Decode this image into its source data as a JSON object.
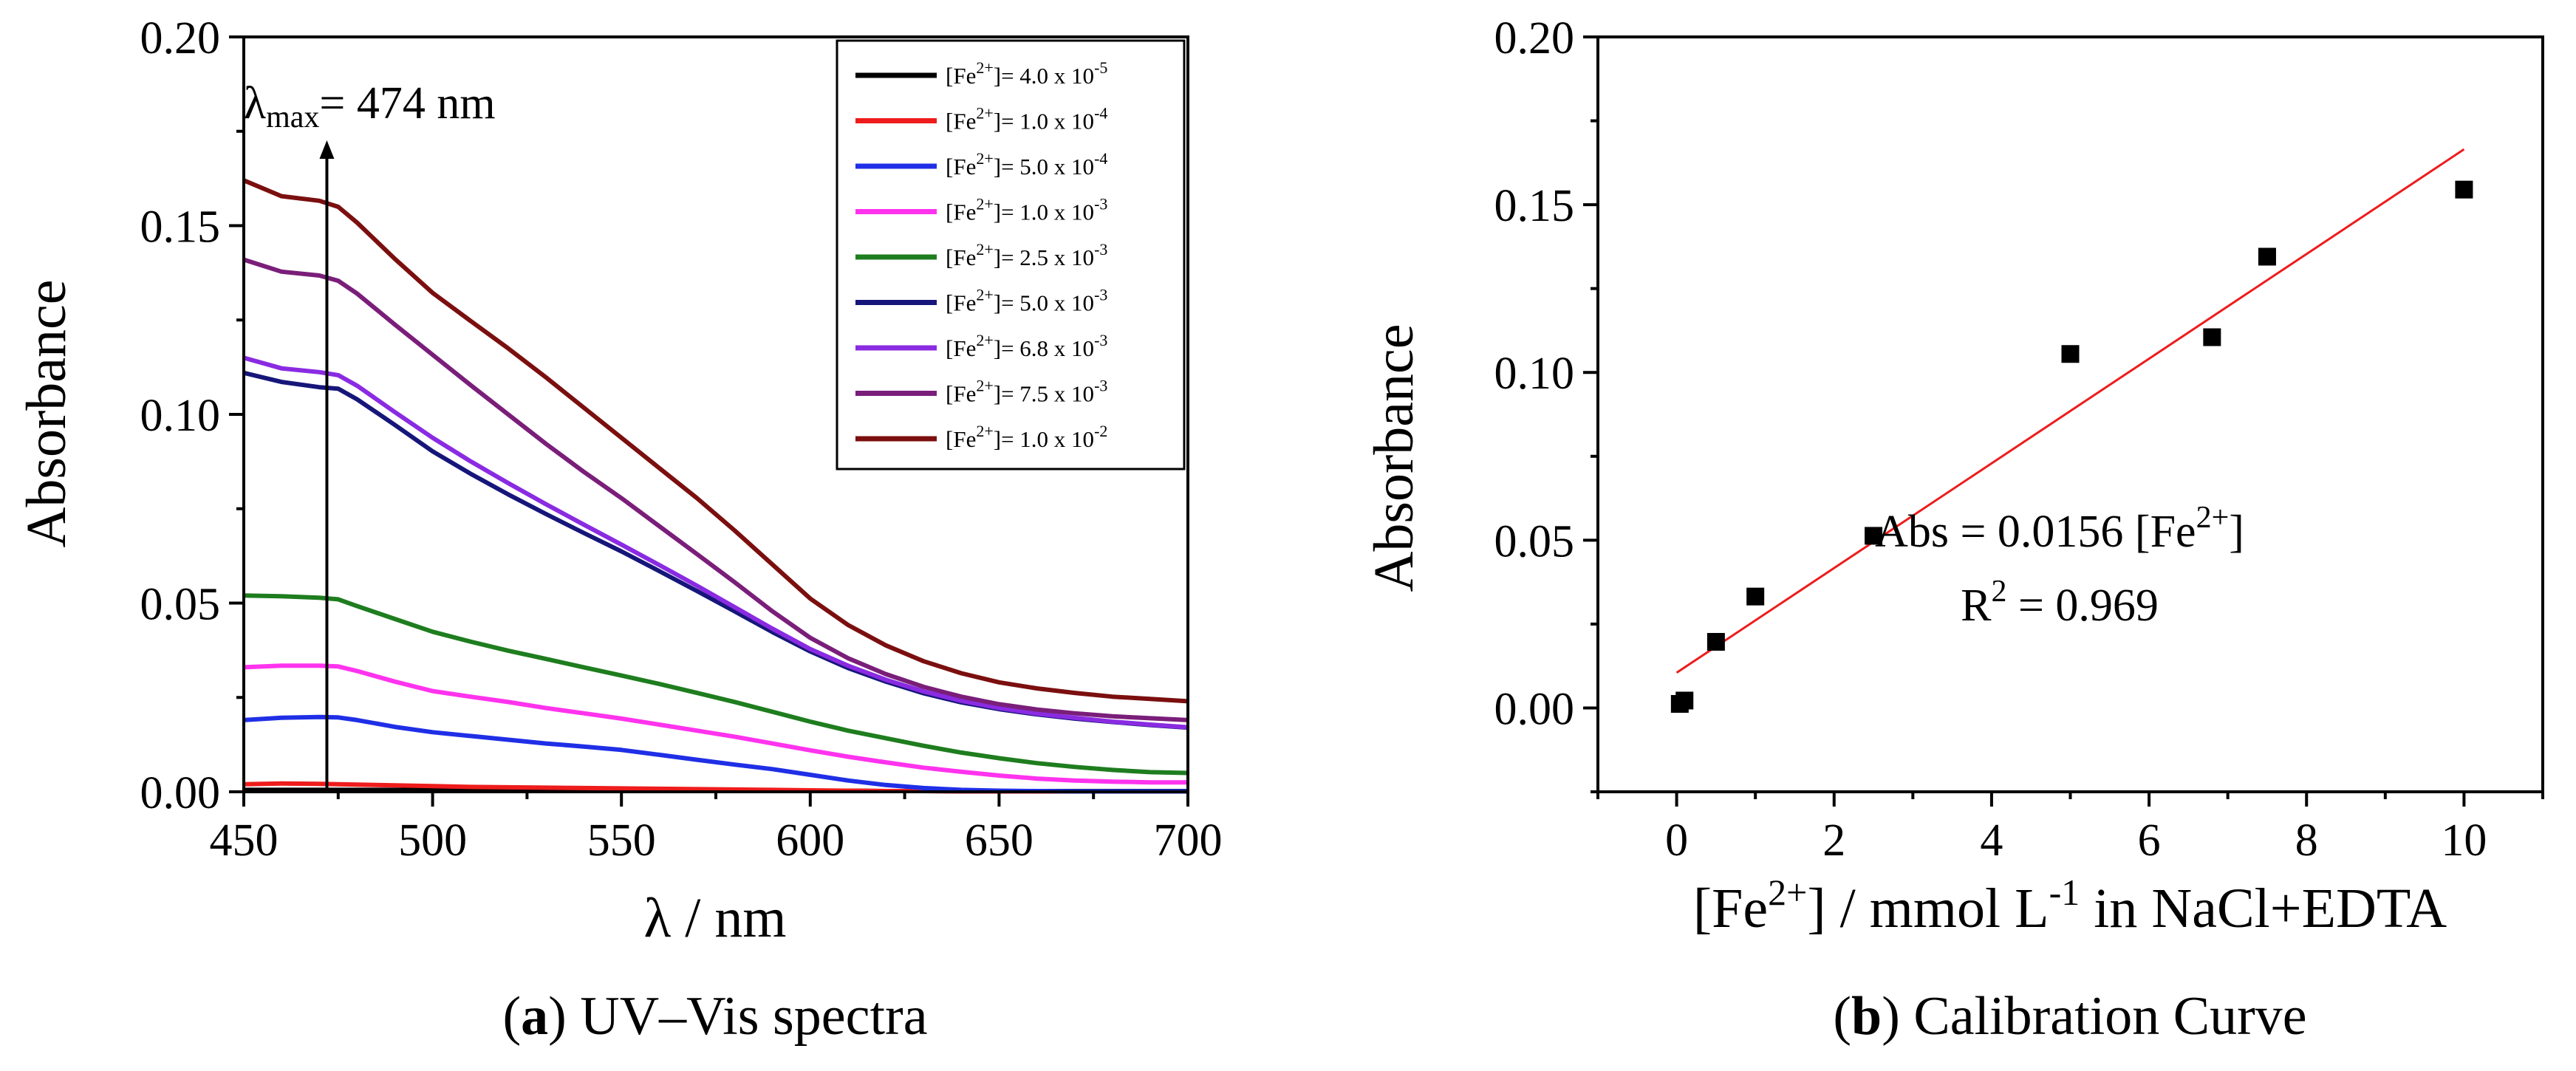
{
  "chart_data": [
    {
      "type": "line",
      "title": "",
      "xlabel": "λ / nm",
      "ylabel": "Absorbance",
      "xlim": [
        450,
        700
      ],
      "ylim": [
        0,
        0.2
      ],
      "xticks": [
        "450",
        "500",
        "550",
        "600",
        "650",
        "700"
      ],
      "yticks": [
        "0.00",
        "0.05",
        "0.10",
        "0.15",
        "0.20"
      ],
      "annotation": {
        "symbol": "λ",
        "sub": "max",
        "text": "= 474 nm",
        "x": 472
      },
      "legend_position": "top-right",
      "x": [
        450,
        460,
        470,
        475,
        480,
        490,
        500,
        510,
        520,
        530,
        540,
        550,
        560,
        570,
        580,
        590,
        600,
        610,
        620,
        630,
        640,
        650,
        660,
        670,
        680,
        690,
        700
      ],
      "series": [
        {
          "name_prefix": "[Fe",
          "name_sup1": "2+",
          "name_mid": "]= 4.0 x 10",
          "name_sup2": "-5",
          "color": "#000000",
          "values": [
            0.0005,
            0.0005,
            0.0005,
            0.0005,
            0.0005,
            0.0005,
            0.0005,
            0.0005,
            0.0004,
            0.0004,
            0.0004,
            0.0004,
            0.0004,
            0.0003,
            0.0003,
            0.0003,
            0.0003,
            0.0003,
            0.0002,
            0.0002,
            0.0002,
            0.0002,
            0.0002,
            0.0002,
            0.0002,
            0.0002,
            0.0002
          ]
        },
        {
          "name_prefix": "[Fe",
          "name_sup1": "2+",
          "name_mid": "]= 1.0 x 10",
          "name_sup2": "-4",
          "color": "#ee1c1c",
          "values": [
            0.002,
            0.0022,
            0.0021,
            0.002,
            0.0019,
            0.0017,
            0.0015,
            0.0013,
            0.0012,
            0.0011,
            0.001,
            0.0009,
            0.0008,
            0.0007,
            0.0006,
            0.0005,
            0.0004,
            0.0003,
            0.0002,
            0.0002,
            0.0001,
            0.0001,
            0.0001,
            0.0001,
            0.0001,
            0.0001,
            0.0001
          ]
        },
        {
          "name_prefix": "[Fe",
          "name_sup1": "2+",
          "name_mid": "]= 5.0 x 10",
          "name_sup2": "-4",
          "color": "#1f2fe6",
          "values": [
            0.019,
            0.0196,
            0.0198,
            0.0197,
            0.019,
            0.0172,
            0.0158,
            0.0148,
            0.0138,
            0.0128,
            0.012,
            0.0111,
            0.0098,
            0.0085,
            0.0072,
            0.006,
            0.0045,
            0.003,
            0.0018,
            0.001,
            0.0005,
            0.0003,
            0.0002,
            0.0001,
            0.0001,
            0.0001,
            0.0001
          ]
        },
        {
          "name_prefix": "[Fe",
          "name_sup1": "2+",
          "name_mid": "]= 1.0 x 10",
          "name_sup2": "-3",
          "color": "#ff33ee",
          "values": [
            0.033,
            0.0334,
            0.0334,
            0.0332,
            0.032,
            0.0292,
            0.0267,
            0.0252,
            0.0238,
            0.0222,
            0.0208,
            0.0194,
            0.0178,
            0.0162,
            0.0146,
            0.0128,
            0.011,
            0.0093,
            0.0078,
            0.0064,
            0.0053,
            0.0043,
            0.0035,
            0.003,
            0.0027,
            0.0025,
            0.0025
          ]
        },
        {
          "name_prefix": "[Fe",
          "name_sup1": "2+",
          "name_mid": "]= 2.5 x 10",
          "name_sup2": "-3",
          "color": "#1e7d1e",
          "values": [
            0.052,
            0.0518,
            0.0514,
            0.051,
            0.0492,
            0.0458,
            0.0424,
            0.0398,
            0.0374,
            0.0352,
            0.033,
            0.0308,
            0.0286,
            0.0262,
            0.0238,
            0.0212,
            0.0186,
            0.0162,
            0.0142,
            0.0122,
            0.0104,
            0.0089,
            0.0076,
            0.0066,
            0.0058,
            0.0052,
            0.005
          ]
        },
        {
          "name_prefix": "[Fe",
          "name_sup1": "2+",
          "name_mid": "]= 5.0 x 10",
          "name_sup2": "-3",
          "color": "#16167a",
          "values": [
            0.111,
            0.1086,
            0.1072,
            0.1068,
            0.104,
            0.0972,
            0.0902,
            0.0843,
            0.0788,
            0.0736,
            0.0686,
            0.0637,
            0.0585,
            0.0532,
            0.0478,
            0.0423,
            0.0372,
            0.0328,
            0.0292,
            0.0261,
            0.0237,
            0.0219,
            0.0205,
            0.0194,
            0.0185,
            0.0177,
            0.017
          ]
        },
        {
          "name_prefix": "[Fe",
          "name_sup1": "2+",
          "name_mid": "]= 6.8 x 10",
          "name_sup2": "-3",
          "color": "#8a2be2",
          "values": [
            0.115,
            0.1122,
            0.1112,
            0.1104,
            0.1076,
            0.1006,
            0.0938,
            0.0876,
            0.0818,
            0.0762,
            0.0708,
            0.0655,
            0.0601,
            0.0546,
            0.0489,
            0.0432,
            0.0378,
            0.0334,
            0.0297,
            0.0266,
            0.0241,
            0.0222,
            0.0207,
            0.0196,
            0.0186,
            0.0178,
            0.0171
          ]
        },
        {
          "name_prefix": "[Fe",
          "name_sup1": "2+",
          "name_mid": "]= 7.5 x 10",
          "name_sup2": "-3",
          "color": "#7a1e7a",
          "values": [
            0.141,
            0.1378,
            0.1368,
            0.1354,
            0.132,
            0.1238,
            0.1158,
            0.1078,
            0.1,
            0.0922,
            0.0848,
            0.0778,
            0.0704,
            0.063,
            0.0555,
            0.0478,
            0.0408,
            0.0354,
            0.0312,
            0.0278,
            0.0252,
            0.0232,
            0.0218,
            0.0208,
            0.02,
            0.0195,
            0.019
          ]
        },
        {
          "name_prefix": "[Fe",
          "name_sup1": "2+",
          "name_mid": "]= 1.0 x 10",
          "name_sup2": "-2",
          "color": "#7b0f0f",
          "values": [
            0.162,
            0.1578,
            0.1566,
            0.155,
            0.1508,
            0.1412,
            0.1322,
            0.1248,
            0.1175,
            0.1098,
            0.1018,
            0.0938,
            0.0858,
            0.0778,
            0.0692,
            0.0602,
            0.0512,
            0.0442,
            0.0388,
            0.0346,
            0.0314,
            0.029,
            0.0274,
            0.0262,
            0.0252,
            0.0246,
            0.024
          ]
        }
      ],
      "caption": {
        "open": "(",
        "bold": "a",
        "close": ")",
        "text": " UV–Vis spectra"
      }
    },
    {
      "type": "scatter",
      "title": "",
      "xlabel_prefix": "[Fe",
      "xlabel_sup": "2+",
      "xlabel_mid": "] / mmol L",
      "xlabel_sup2": "-1",
      "xlabel_suffix": " in NaCl+EDTA",
      "ylabel": "Absorbance",
      "xlim": [
        -1,
        11
      ],
      "ylim": [
        -0.025,
        0.2
      ],
      "xticks": [
        "0",
        "2",
        "4",
        "6",
        "8",
        "10"
      ],
      "yticks": [
        "0.00",
        "0.05",
        "0.10",
        "0.15",
        "0.20"
      ],
      "x": [
        0.04,
        0.1,
        0.5,
        1.0,
        2.5,
        5.0,
        6.8,
        7.5,
        10.0
      ],
      "y": [
        0.0012,
        0.0022,
        0.0197,
        0.0332,
        0.0513,
        0.1055,
        0.1105,
        0.1345,
        0.1545
      ],
      "fit": {
        "x": [
          0,
          10
        ],
        "y": [
          0.0105,
          0.1665
        ],
        "color": "#ee1c1c"
      },
      "equation_prefix": "Abs = 0.0156 [Fe",
      "equation_sup": "2+",
      "equation_suffix": "]",
      "r2_prefix": "R",
      "r2_sup": "2",
      "r2_suffix": " = 0.969",
      "caption": {
        "open": "(",
        "bold": "b",
        "close": ")",
        "text": " Calibration Curve"
      }
    }
  ]
}
